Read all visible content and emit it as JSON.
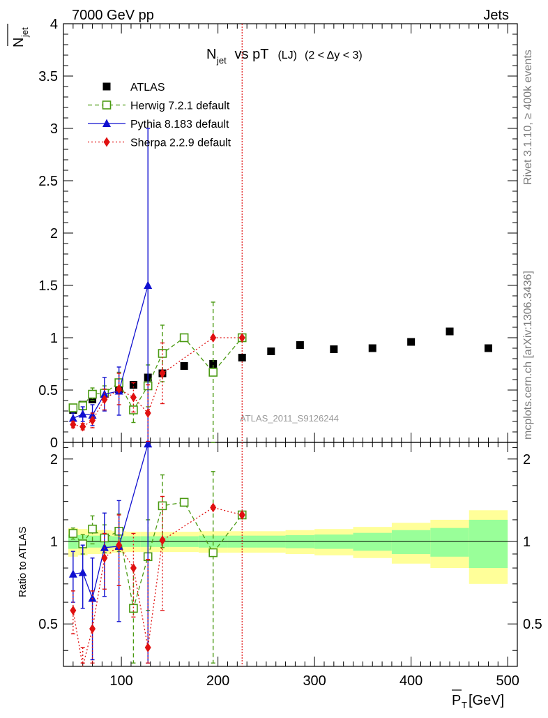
{
  "header": {
    "left": "7000 GeV pp",
    "right": "Jets"
  },
  "side_labels": {
    "rivet": "Rivet 3.1.10, ≥ 400k events",
    "mcplots": "mcplots.cern.ch [arXiv:1306.3436]"
  },
  "chart_data": {
    "type": "scatter",
    "title": "N_jet vs pT (LJ) (2 < Δy < 3)",
    "title_parts": {
      "main": "N",
      "sub": "jet",
      "rest": " vs pT",
      "small": " (LJ) ",
      "range": "(2 < Δy < 3)"
    },
    "watermark": "ATLAS_2011_S9126244",
    "xlabel": "P_T [GeV]",
    "xlabel_parts": {
      "sym": "P",
      "sub": "T",
      "unit": " [GeV]"
    },
    "ylabel_top": "N_jet",
    "ylabel_top_parts": {
      "sym": "N",
      "sub": "jet"
    },
    "ylabel_bottom": "Ratio to ATLAS",
    "xlim": [
      40,
      510
    ],
    "ylim_top": [
      0,
      4
    ],
    "ylim_bottom": [
      0.35,
      2.3
    ],
    "xticks": [
      100,
      200,
      300,
      400,
      500
    ],
    "xtick_labels": [
      "100",
      "200",
      "300",
      "400",
      "500"
    ],
    "yticks_top": [
      0,
      0.5,
      1,
      1.5,
      2,
      2.5,
      3,
      3.5,
      4
    ],
    "ytick_labels_top": [
      "0",
      "0.5",
      "1",
      "1.5",
      "2",
      "2.5",
      "3",
      "3.5",
      "4"
    ],
    "yticks_bottom": [
      0.5,
      1,
      2
    ],
    "ytick_labels_bottom": [
      "0.5",
      "1",
      "2"
    ],
    "cut_line_x": 225,
    "legend": [
      {
        "name": "ATLAS",
        "style": "data"
      },
      {
        "name": "Herwig 7.2.1 default",
        "style": "herwig"
      },
      {
        "name": "Pythia 8.183 default",
        "style": "pythia"
      },
      {
        "name": "Sherpa 2.2.9 default",
        "style": "sherpa"
      }
    ],
    "data": {
      "name": "ATLAS",
      "bins": [
        [
          45,
          55
        ],
        [
          55,
          65
        ],
        [
          65,
          75
        ],
        [
          75,
          90
        ],
        [
          90,
          105
        ],
        [
          105,
          120
        ],
        [
          120,
          135
        ],
        [
          135,
          150
        ],
        [
          150,
          180
        ],
        [
          180,
          210
        ],
        [
          210,
          240
        ],
        [
          240,
          270
        ],
        [
          270,
          300
        ],
        [
          300,
          340
        ],
        [
          340,
          380
        ],
        [
          380,
          420
        ],
        [
          420,
          460
        ],
        [
          460,
          500
        ]
      ],
      "x": [
        50,
        60,
        70,
        82.5,
        97.5,
        112.5,
        127.5,
        142.5,
        165,
        195,
        225,
        255,
        285,
        320,
        360,
        400,
        440,
        480
      ],
      "y": [
        0.31,
        0.36,
        0.41,
        0.47,
        0.51,
        0.55,
        0.62,
        0.66,
        0.73,
        0.75,
        0.81,
        0.87,
        0.93,
        0.89,
        0.9,
        0.96,
        1.06,
        0.9
      ],
      "band_inner": [
        0.06,
        0.055,
        0.05,
        0.05,
        0.045,
        0.045,
        0.045,
        0.045,
        0.045,
        0.05,
        0.05,
        0.05,
        0.055,
        0.06,
        0.075,
        0.1,
        0.12,
        0.2
      ],
      "band_outer": [
        0.12,
        0.11,
        0.1,
        0.1,
        0.09,
        0.085,
        0.085,
        0.085,
        0.085,
        0.09,
        0.09,
        0.09,
        0.1,
        0.11,
        0.13,
        0.17,
        0.2,
        0.3
      ]
    },
    "series": [
      {
        "name": "Herwig 7.2.1 default",
        "color": "#4a9a12",
        "marker": "square-open",
        "dash": "6,4",
        "x": [
          50,
          60,
          70,
          82.5,
          97.5,
          112.5,
          127.5,
          142.5,
          165,
          195,
          225
        ],
        "y": [
          0.33,
          0.35,
          0.46,
          0.47,
          0.57,
          0.31,
          0.54,
          0.85,
          1.0,
          0.67,
          1.0
        ],
        "err": [
          0.03,
          0.04,
          0.06,
          0.07,
          0.1,
          0.12,
          0.2,
          0.27,
          0.01,
          0.67,
          0.01
        ],
        "ratio": [
          1.07,
          0.98,
          1.11,
          1.03,
          1.09,
          0.57,
          0.88,
          1.35,
          1.39,
          0.91,
          1.25
        ],
        "ratio_err": [
          0.05,
          0.08,
          0.13,
          0.12,
          0.17,
          0.22,
          0.32,
          0.4,
          0.02,
          0.89,
          0.02
        ]
      },
      {
        "name": "Pythia 8.183 default",
        "color": "#1010d0",
        "marker": "triangle",
        "dash": "",
        "x": [
          50,
          60,
          70,
          82.5,
          97.5,
          127.5
        ],
        "y": [
          0.23,
          0.27,
          0.26,
          0.46,
          0.49,
          1.5
        ],
        "err": [
          0.05,
          0.07,
          0.1,
          0.16,
          0.23,
          1.5
        ],
        "ratio": [
          0.76,
          0.77,
          0.62,
          0.95,
          0.96,
          2.27
        ],
        "ratio_err": [
          0.16,
          0.2,
          0.25,
          0.32,
          0.45,
          2.3
        ]
      },
      {
        "name": "Sherpa 2.2.9 default",
        "color": "#e01010",
        "marker": "diamond",
        "dash": "2,3",
        "x": [
          50,
          60,
          70,
          82.5,
          97.5,
          112.5,
          127.5,
          142.5,
          195,
          225
        ],
        "y": [
          0.17,
          0.15,
          0.21,
          0.41,
          0.51,
          0.43,
          0.28,
          0.66,
          1.0,
          1.0
        ],
        "err": [
          0.03,
          0.03,
          0.07,
          0.1,
          0.15,
          0.14,
          0.27,
          0.29,
          0.01,
          0.01
        ],
        "ratio": [
          0.56,
          0.33,
          0.48,
          0.87,
          0.97,
          0.8,
          0.41,
          1.01,
          1.33,
          1.25
        ],
        "ratio_err": [
          0.1,
          0.08,
          0.18,
          0.2,
          0.28,
          0.27,
          0.45,
          0.45,
          0.02,
          0.02
        ]
      }
    ]
  }
}
